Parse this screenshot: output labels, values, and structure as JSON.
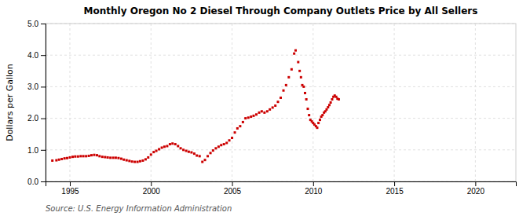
{
  "chart_data": {
    "type": "scatter",
    "title": "Monthly Oregon No 2 Diesel Through Company Outlets Price by All Sellers",
    "ylabel": "Dollars per Gallon",
    "annotations": [
      "Source: U.S. Energy Information Administration"
    ],
    "color": "#cc0000",
    "marker": "square",
    "grid": true,
    "xlim": [
      1993.5,
      2022.5
    ],
    "ylim": [
      0.0,
      5.0
    ],
    "xticks": [
      1995,
      2000,
      2005,
      2010,
      2015,
      2020
    ],
    "yticks": [
      {
        "value": 0.0,
        "label": "0.0"
      },
      {
        "value": 1.0,
        "label": "1.0"
      },
      {
        "value": 2.0,
        "label": "2.0"
      },
      {
        "value": 3.0,
        "label": "3.0"
      },
      {
        "value": 4.0,
        "label": "4.0"
      },
      {
        "value": 5.0,
        "label": "5.0"
      }
    ],
    "x": [
      1993.92,
      1994.17,
      1994.33,
      1994.5,
      1994.67,
      1994.83,
      1995.0,
      1995.17,
      1995.33,
      1995.5,
      1995.67,
      1995.83,
      1996.0,
      1996.17,
      1996.33,
      1996.5,
      1996.67,
      1996.83,
      1997.0,
      1997.17,
      1997.33,
      1997.5,
      1997.67,
      1997.83,
      1998.0,
      1998.17,
      1998.33,
      1998.5,
      1998.67,
      1998.83,
      1999.0,
      1999.17,
      1999.33,
      1999.5,
      1999.67,
      1999.83,
      2000.0,
      2000.17,
      2000.33,
      2000.5,
      2000.67,
      2000.83,
      2001.0,
      2001.17,
      2001.33,
      2001.5,
      2001.67,
      2001.83,
      2002.0,
      2002.17,
      2002.33,
      2002.5,
      2002.67,
      2002.83,
      2003.0,
      2003.17,
      2003.33,
      2003.5,
      2003.67,
      2003.83,
      2004.0,
      2004.17,
      2004.33,
      2004.5,
      2004.67,
      2004.83,
      2005.0,
      2005.17,
      2005.33,
      2005.5,
      2005.67,
      2005.83,
      2006.0,
      2006.17,
      2006.33,
      2006.5,
      2006.67,
      2006.83,
      2007.0,
      2007.17,
      2007.33,
      2007.5,
      2007.67,
      2007.83,
      2008.0,
      2008.17,
      2008.33,
      2008.5,
      2008.67,
      2008.83,
      2008.92,
      2009.08,
      2009.17,
      2009.25,
      2009.33,
      2009.42,
      2009.5,
      2009.58,
      2009.67,
      2009.75,
      2009.83,
      2009.92,
      2010.0,
      2010.08,
      2010.17,
      2010.25,
      2010.33,
      2010.42,
      2010.5,
      2010.58,
      2010.67,
      2010.75,
      2010.83,
      2010.92,
      2011.0,
      2011.08,
      2011.17,
      2011.25,
      2011.33,
      2011.42,
      2011.5,
      2011.58
    ],
    "values": [
      0.66,
      0.67,
      0.69,
      0.71,
      0.73,
      0.74,
      0.76,
      0.78,
      0.79,
      0.79,
      0.8,
      0.8,
      0.8,
      0.81,
      0.83,
      0.84,
      0.83,
      0.8,
      0.78,
      0.77,
      0.76,
      0.75,
      0.75,
      0.75,
      0.74,
      0.72,
      0.69,
      0.67,
      0.65,
      0.63,
      0.62,
      0.62,
      0.64,
      0.66,
      0.7,
      0.76,
      0.85,
      0.93,
      0.97,
      1.02,
      1.07,
      1.1,
      1.12,
      1.18,
      1.2,
      1.18,
      1.12,
      1.05,
      1.0,
      0.97,
      0.94,
      0.92,
      0.88,
      0.82,
      0.8,
      0.62,
      0.68,
      0.8,
      0.9,
      0.98,
      1.05,
      1.1,
      1.15,
      1.18,
      1.22,
      1.3,
      1.38,
      1.55,
      1.68,
      1.75,
      1.88,
      2.0,
      2.02,
      2.05,
      2.08,
      2.12,
      2.18,
      2.22,
      2.18,
      2.22,
      2.28,
      2.34,
      2.4,
      2.52,
      2.65,
      2.88,
      3.05,
      3.3,
      3.55,
      4.05,
      4.15,
      3.78,
      3.5,
      3.3,
      3.05,
      3.0,
      2.8,
      2.6,
      2.3,
      2.1,
      1.95,
      1.9,
      1.85,
      1.8,
      1.75,
      1.7,
      1.85,
      1.95,
      2.05,
      2.1,
      2.18,
      2.22,
      2.28,
      2.35,
      2.42,
      2.5,
      2.6,
      2.68,
      2.72,
      2.68,
      2.62,
      2.6
    ]
  }
}
